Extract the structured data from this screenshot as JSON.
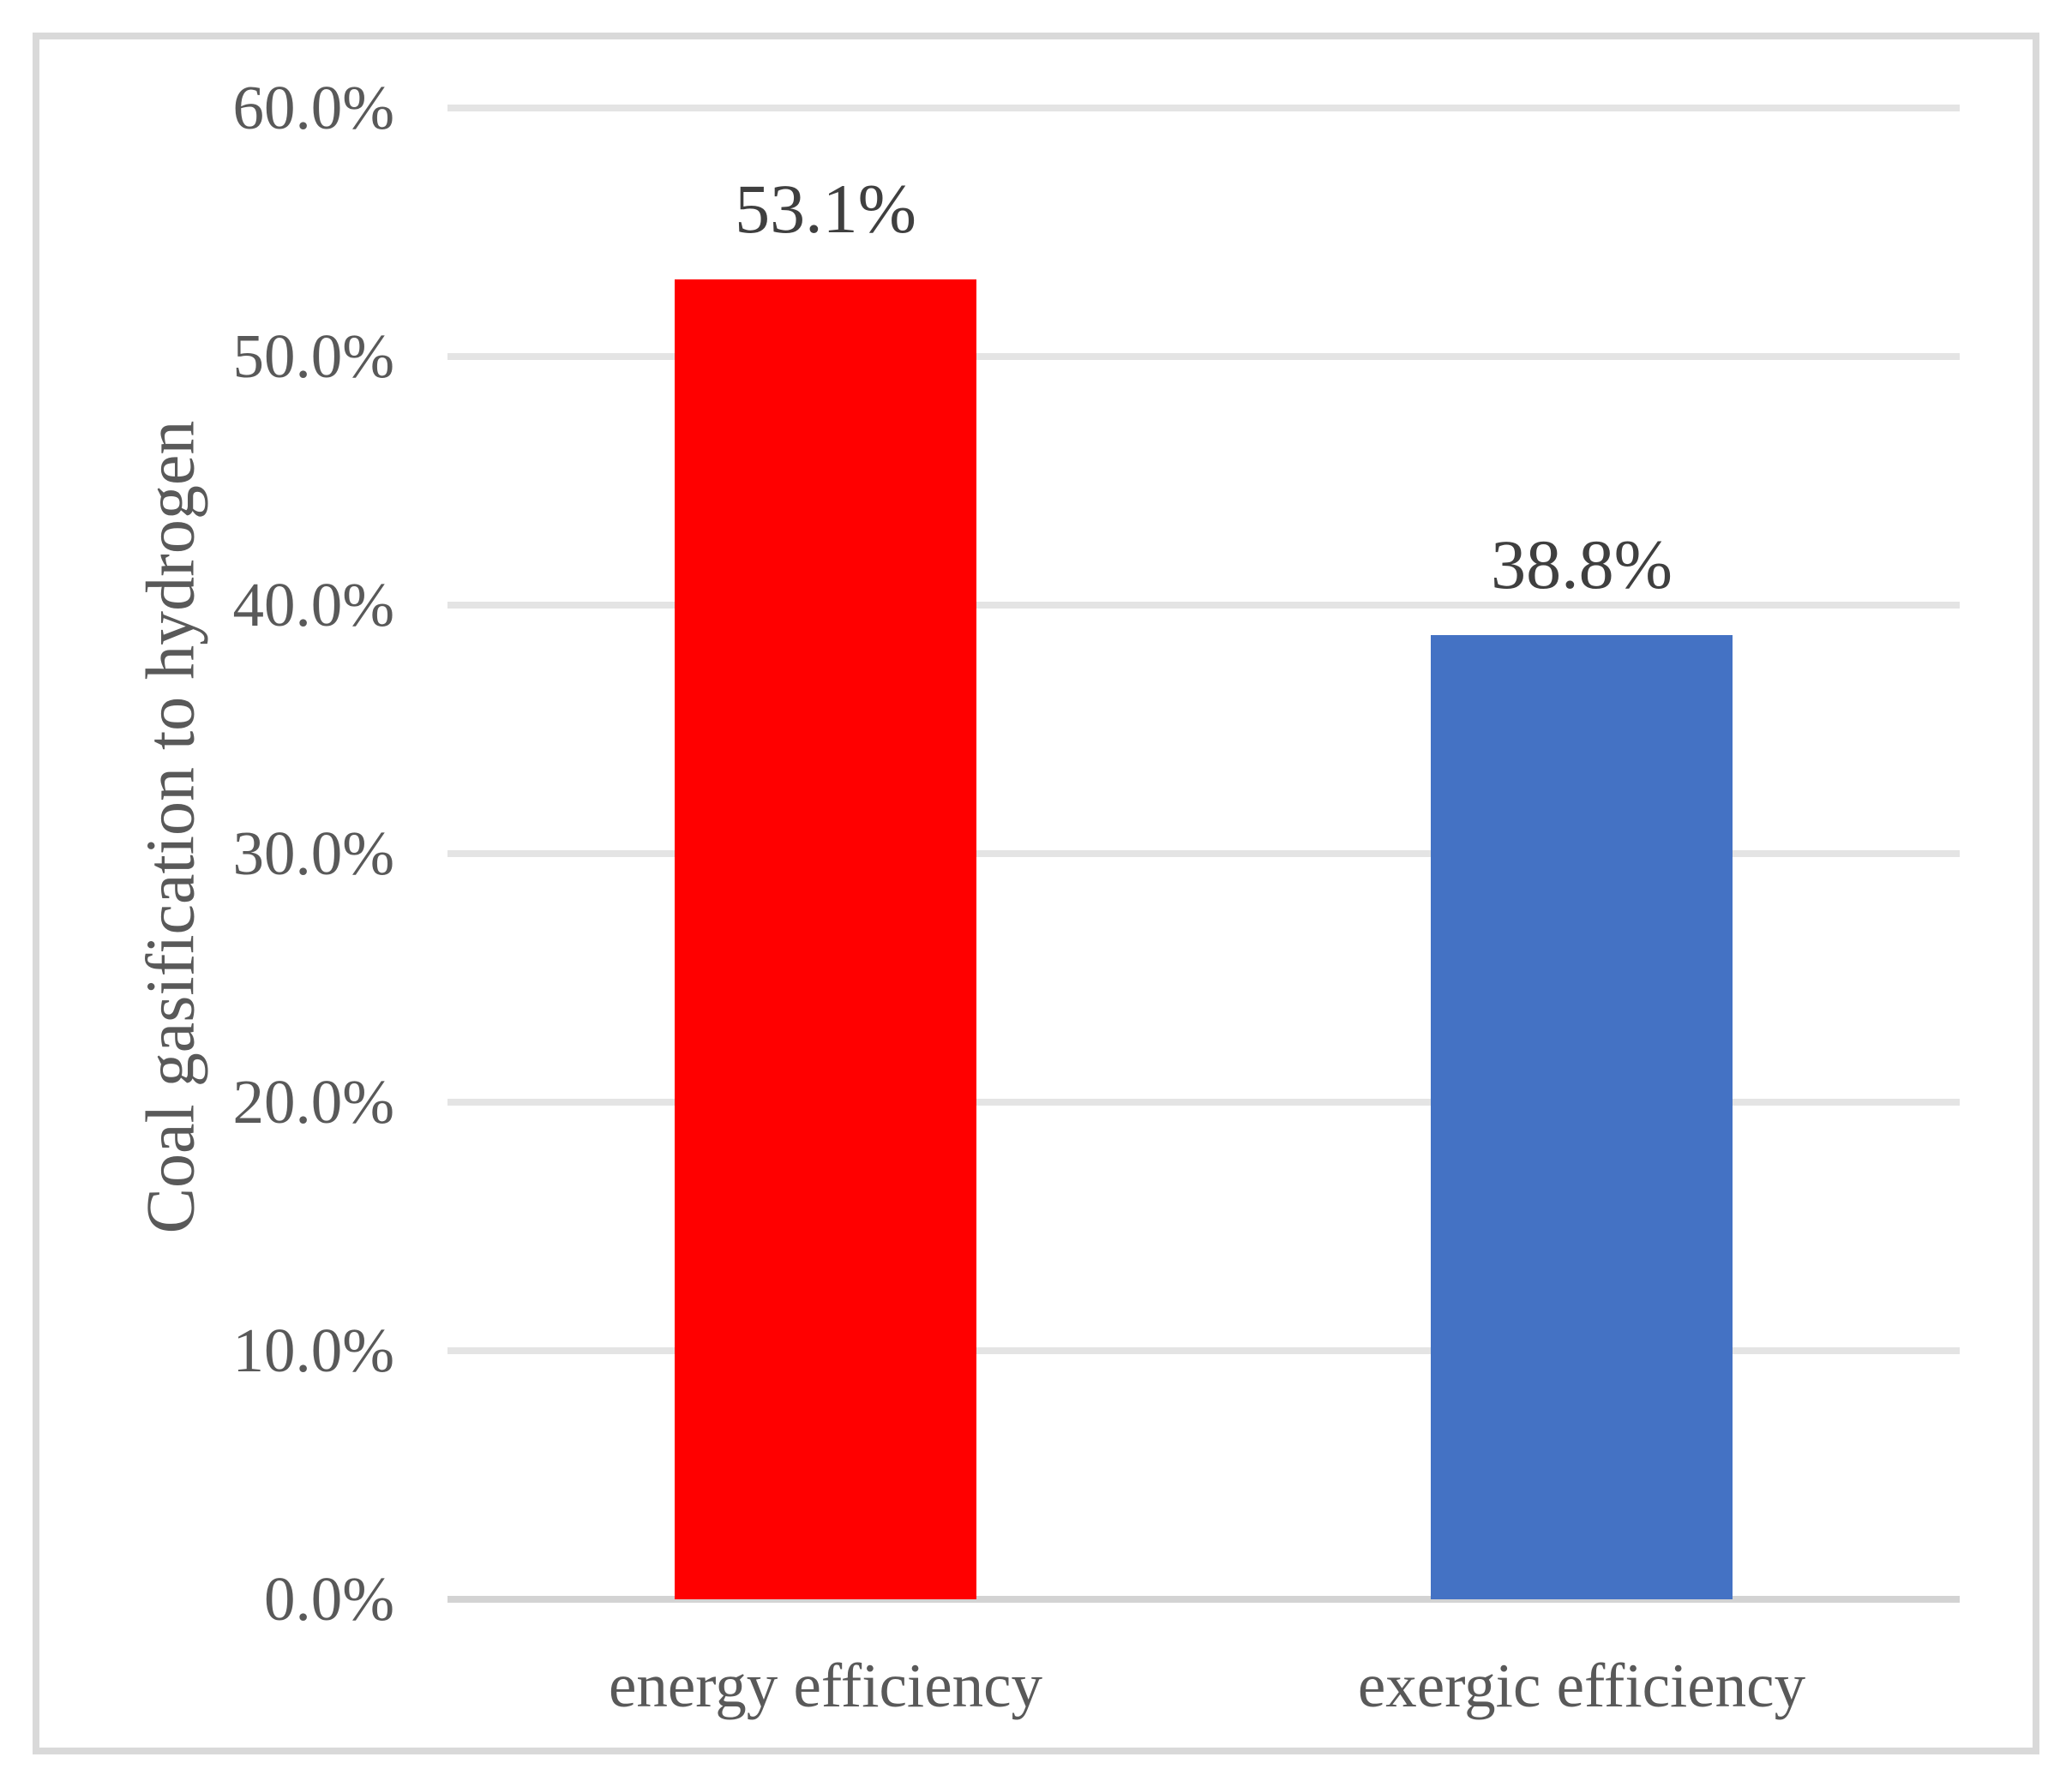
{
  "chart_data": {
    "type": "bar",
    "title": "",
    "categories": [
      "energy efficiency",
      "exergic efficiency"
    ],
    "values": [
      53.1,
      38.8
    ],
    "data_labels": [
      "53.1%",
      "38.8%"
    ],
    "series_colors": [
      "#FF0000",
      "#4472C4"
    ],
    "ylabel": "Coal gasification to hydrogen",
    "ylim": [
      0,
      60
    ],
    "ytick_interval": 10,
    "ytick_labels": [
      "0.0%",
      "10.0%",
      "20.0%",
      "30.0%",
      "40.0%",
      "50.0%",
      "60.0%"
    ],
    "grid": "horizontal gridlines at every 10%",
    "legend": "none"
  },
  "style_colors": {
    "gridline": "#E4E4E4",
    "axis_line": "#D3D3D3",
    "frame_border": "#D9D9D9",
    "tick_text": "#595959",
    "category_text": "#595959",
    "axis_title_text": "#595959",
    "data_label_text": "#3F3F3F",
    "background": "#FFFFFF"
  }
}
